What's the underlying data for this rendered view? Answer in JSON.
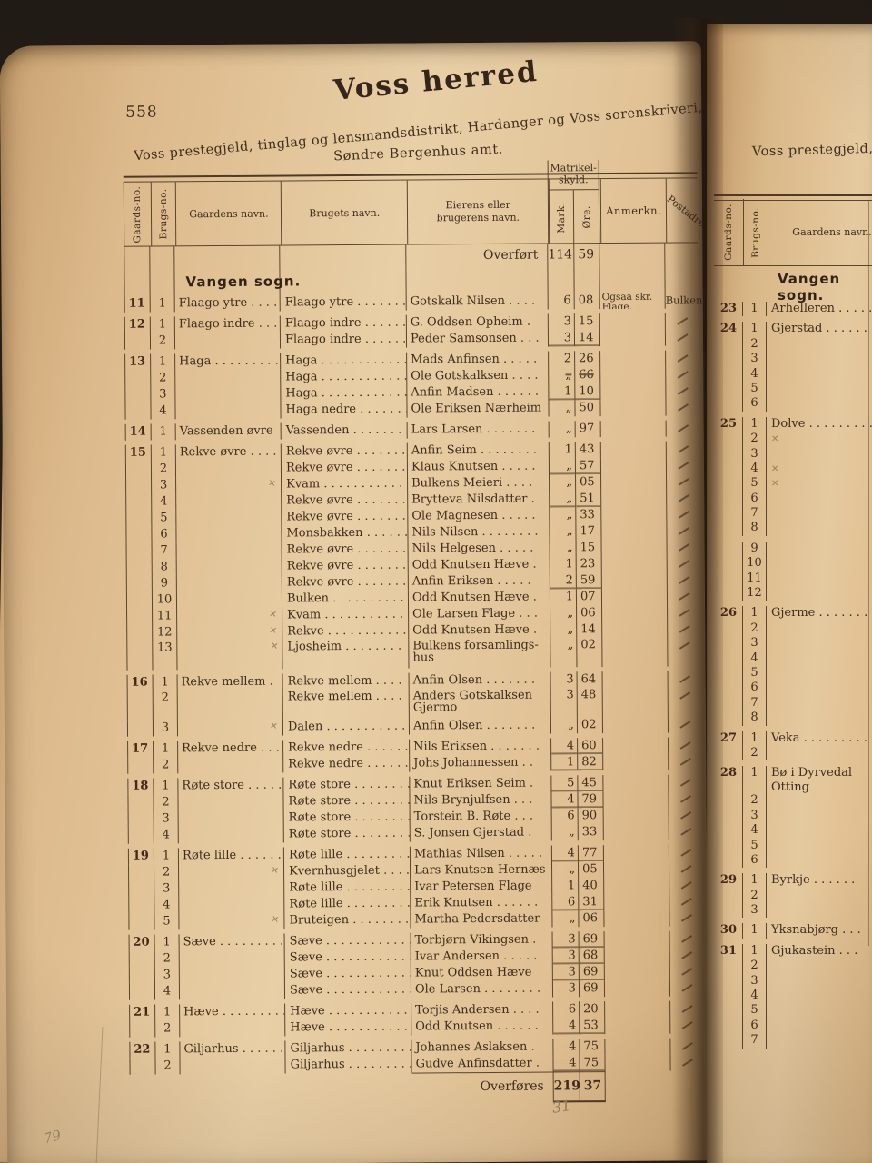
{
  "colors": {
    "backdrop": "#241d16",
    "paper": "#e3c598",
    "ink": "#3f2d1d",
    "bold_ink": "#46281a",
    "pencil": "#97805c",
    "rule_line": "#5a452e"
  },
  "left_page": {
    "page_number": "558",
    "title": "Voss herred",
    "subtitle_line1": "Voss prestegjeld, tinglag og lensmandsdistrikt, Hardanger og Voss sorenskriveri,",
    "subtitle_line2": "Søndre Bergenhus amt.",
    "pencil_note_bottom_left": "79",
    "pencil_note_below_table": "31",
    "table": {
      "headers": {
        "gaards_no": "Gaards-no.",
        "brugs_no": "Brugs-no.",
        "gaardens_navn": "Gaardens navn.",
        "brugets_navn": "Brugets navn.",
        "eier_line1": "Eierens eller",
        "eier_line2": "brugerens navn.",
        "skyld_line1": "Matrikel-",
        "skyld_line2": "skyld.",
        "mark": "Mark.",
        "ore": "Øre.",
        "anmerkn": "Anmerkn.",
        "postadresse": "Postadresse"
      },
      "carried_forward": {
        "label": "Overført",
        "mark": "114",
        "ore": "59"
      },
      "section_heading": "Vangen sogn.",
      "rows": [
        {
          "g": "11",
          "b": "1",
          "gaard": "Flaago ytre . . . .",
          "brug": "Flaago ytre . . . . . . .",
          "owner": "Gotskalk Nilsen . . . .",
          "mark": "6",
          "ore": "08",
          "chk": "v",
          "anm1": "Ogsaa skr.",
          "anm2": "Flage.",
          "post": "Bulken"
        },
        {
          "g": "12",
          "b": "1",
          "gaard": "Flaago indre . . .",
          "brug": "Flaago indre . . . . . .",
          "owner": "G. Oddsen Opheim .",
          "mark": "3",
          "ore": "15",
          "chk": "v",
          "post": "-",
          "gap": 1
        },
        {
          "b": "2",
          "brug": "Flaago indre . . . . . .",
          "owner": "Peder Samsonsen . . .",
          "mark": "3",
          "ore": "14",
          "chk": "v",
          "u": 1,
          "post": "-"
        },
        {
          "g": "13",
          "b": "1",
          "gaard": "Haga . . . . . . . . .",
          "brug": "Haga . . . . . . . . . . . .",
          "owner": "Mads Anfinsen . . . . .",
          "mark": "2",
          "ore": "26",
          "chk": "v",
          "post": "-",
          "gap": 1
        },
        {
          "b": "2",
          "brug": "Haga . . . . . . . . . . . .",
          "owner": "Ole Gotskalksen . . . .",
          "mark": "„",
          "ore": "66",
          "chk": "v",
          "strike": 1,
          "post": "-"
        },
        {
          "b": "3",
          "brug": "Haga . . . . . . . . . . . .",
          "owner": "Anfin Madsen . . . . . .",
          "mark": "1",
          "ore": "10",
          "chk": "v",
          "u": 1,
          "post": "-"
        },
        {
          "b": "4",
          "brug": "Haga nedre . . . . . . .",
          "owner": "Ole Eriksen Nærheim",
          "mark": "„",
          "ore": "50",
          "chk": "v",
          "post": "-"
        },
        {
          "g": "14",
          "b": "1",
          "gaard": "Vassenden øvre",
          "brug": "Vassenden . . . . . . . .",
          "owner": "Lars Larsen . . . . . . .",
          "mark": "„",
          "ore": "97",
          "post": "-",
          "gap": 1
        },
        {
          "g": "15",
          "b": "1",
          "gaard": "Rekve øvre . . . .",
          "brug": "Rekve øvre . . . . . . .",
          "owner": "Anfin Seim . . . . . . . .",
          "mark": "1",
          "ore": "43",
          "chk": "x",
          "post": "-",
          "gap": 1
        },
        {
          "b": "2",
          "brug": "Rekve øvre . . . . . . .",
          "owner": "Klaus Knutsen . . . . .",
          "mark": "„",
          "ore": "57",
          "chk": "v",
          "u": 1,
          "post": "-"
        },
        {
          "b": "3",
          "gm": "x",
          "brug": "Kvam . . . . . . . . . . .",
          "owner": "Bulkens Meieri . . . .",
          "mark": "„",
          "ore": "05",
          "post": "-"
        },
        {
          "b": "4",
          "brug": "Rekve øvre . . . . . . .",
          "owner": "Brytteva Nilsdatter .",
          "mark": "„",
          "ore": "51",
          "chk": "x",
          "u": 1,
          "post": "-"
        },
        {
          "b": "5",
          "brug": "Rekve øvre . . . . . . .",
          "owner": "Ole Magnesen . . . . .",
          "mark": "„",
          "ore": "33",
          "post": "-"
        },
        {
          "b": "6",
          "brug": "Monsbakken . . . . . .",
          "owner": "Nils Nilsen . . . . . . . .",
          "mark": "„",
          "ore": "17",
          "post": "-"
        },
        {
          "b": "7",
          "brug": "Rekve øvre . . . . . . .",
          "owner": "Nils Helgesen . . . . .",
          "mark": "„",
          "ore": "15",
          "post": "-"
        },
        {
          "b": "8",
          "brug": "Rekve øvre . . . . . . .",
          "owner": "Odd Knutsen Hæve .",
          "mark": "1",
          "ore": "23",
          "chk": "v",
          "post": "-"
        },
        {
          "b": "9",
          "brug": "Rekve øvre . . . . . . .",
          "owner": "Anfin Eriksen . . . . .",
          "mark": "2",
          "ore": "59",
          "chk": "v",
          "u": 1,
          "post": "-"
        },
        {
          "b": "10",
          "brug": "Bulken . . . . . . . . . .",
          "owner": "Odd Knutsen Hæve .",
          "mark": "1",
          "ore": "07",
          "chk": "v",
          "post": "-"
        },
        {
          "b": "11",
          "gm": "x",
          "brug": "Kvam . . . . . . . . . . .",
          "owner": "Ole Larsen Flage . . .",
          "mark": "„",
          "ore": "06",
          "post": "-"
        },
        {
          "b": "12",
          "gm": "x",
          "brug": "Rekve . . . . . . . . . . .",
          "owner": "Odd Knutsen Hæve .",
          "mark": "„",
          "ore": "14",
          "post": "-"
        },
        {
          "b": "13",
          "gm": "x",
          "brug": "Ljosheim . . . . . . . .",
          "owner": "Bulkens forsamlings-",
          "owner2": "hus",
          "mark": "„",
          "ore": "02",
          "tall": 1,
          "post": "-"
        },
        {
          "g": "16",
          "b": "1",
          "gaard": "Rekve mellem .",
          "brug": "Rekve mellem . . . .",
          "owner": "Anfin Olsen . . . . . . .",
          "mark": "3",
          "ore": "64",
          "chk": "x",
          "post": "-",
          "gap": 1
        },
        {
          "b": "2",
          "brug": "Rekve mellem . . . .",
          "owner": "Anders Gotskalksen",
          "owner2": "Gjermo",
          "mark": "3",
          "ore": "48",
          "chk": "x",
          "tall": 1,
          "post": "-"
        },
        {
          "b": "3",
          "gm": "x",
          "brug": "Dalen . . . . . . . . . . .",
          "owner": "Anfin Olsen . . . . . . .",
          "mark": "„",
          "ore": "02",
          "post": "-"
        },
        {
          "g": "17",
          "b": "1",
          "gaard": "Rekve nedre . . .",
          "brug": "Rekve nedre . . . . . .",
          "owner": "Nils Eriksen . . . . . . .",
          "mark": "4",
          "ore": "60",
          "chk": "x",
          "u": 1,
          "post": "-",
          "gap": 1
        },
        {
          "b": "2",
          "brug": "Rekve nedre . . . . . .",
          "owner": "Johs Johannessen . .",
          "mark": "1",
          "ore": "82",
          "chk": "v",
          "u": 1,
          "post": "-"
        },
        {
          "g": "18",
          "b": "1",
          "gaard": "Røte store . . . . .",
          "brug": "Røte store . . . . . . . .",
          "owner": "Knut Eriksen Seim .",
          "mark": "5",
          "ore": "45",
          "chk": "x",
          "u": 1,
          "post": "-",
          "gap": 1
        },
        {
          "b": "2",
          "brug": "Røte store . . . . . . . .",
          "owner": "Nils Brynjulfsen . . .",
          "mark": "4",
          "ore": "79",
          "chk": "x",
          "u": 1,
          "post": "-"
        },
        {
          "b": "3",
          "brug": "Røte store . . . . . . . .",
          "owner": "Torstein B. Røte . . .",
          "mark": "6",
          "ore": "90",
          "chk": "x",
          "post": "-"
        },
        {
          "b": "4",
          "brug": "Røte store . . . . . . . .",
          "owner": "S. Jonsen Gjerstad .",
          "mark": "„",
          "ore": "33",
          "chk": "v",
          "post": "-"
        },
        {
          "g": "19",
          "b": "1",
          "gaard": "Røte lille . . . . . .",
          "brug": "Røte lille . . . . . . . . .",
          "owner": "Mathias Nilsen . . . . .",
          "mark": "4",
          "ore": "77",
          "chk": "x",
          "u": 1,
          "post": "-",
          "gap": 1
        },
        {
          "b": "2",
          "gm": "x",
          "brug": "Kvernhusgjelet . . . .",
          "owner": "Lars Knutsen Hernæs",
          "mark": "„",
          "ore": "05",
          "post": "-"
        },
        {
          "b": "3",
          "brug": "Røte lille . . . . . . . . .",
          "owner": "Ivar Petersen Flage",
          "mark": "1",
          "ore": "40",
          "chk": "v",
          "post": "-"
        },
        {
          "b": "4",
          "brug": "Røte lille . . . . . . . . .",
          "owner": "Erik Knutsen . . . . . .",
          "mark": "6",
          "ore": "31",
          "chk": "v",
          "u": 1,
          "post": "-"
        },
        {
          "b": "5",
          "gm": "x",
          "brug": "Bruteigen . . . . . . . .",
          "owner": "Martha Pedersdatter",
          "mark": "„",
          "ore": "06",
          "post": "-"
        },
        {
          "g": "20",
          "b": "1",
          "gaard": "Sæve . . . . . . . . .",
          "brug": "Sæve . . . . . . . . . . . .",
          "owner": "Torbjørn Vikingsen .",
          "mark": "3",
          "ore": "69",
          "chk": "v",
          "u": 1,
          "post": "-",
          "gap": 1
        },
        {
          "b": "2",
          "brug": "Sæve . . . . . . . . . . . .",
          "owner": "Ivar Andersen . . . . .",
          "mark": "3",
          "ore": "68",
          "chk": "v",
          "u": 1,
          "post": "-"
        },
        {
          "b": "3",
          "brug": "Sæve . . . . . . . . . . . .",
          "owner": "Knut Oddsen Hæve",
          "mark": "3",
          "ore": "69",
          "chk": "v",
          "u": 1,
          "post": "-"
        },
        {
          "b": "4",
          "brug": "Sæve . . . . . . . . . . . .",
          "owner": "Ole Larsen . . . . . . . .",
          "mark": "3",
          "ore": "69",
          "chk": "v",
          "post": "-"
        },
        {
          "g": "21",
          "b": "1",
          "gaard": "Hæve . . . . . . . . .",
          "brug": "Hæve . . . . . . . . . . .",
          "owner": "Torjis Andersen . . . .",
          "mark": "6",
          "ore": "20",
          "chk": "v",
          "post": "-",
          "gap": 1
        },
        {
          "b": "2",
          "brug": "Hæve . . . . . . . . . . .",
          "owner": "Odd Knutsen . . . . . .",
          "mark": "4",
          "ore": "53",
          "chk": "v",
          "u": 1,
          "post": "-"
        },
        {
          "g": "22",
          "b": "1",
          "gaard": "Giljarhus . . . . . .",
          "brug": "Giljarhus . . . . . . . . .",
          "owner": "Johannes Aslaksen .",
          "mark": "4",
          "ore": "75",
          "chk": "v",
          "post": "-",
          "gap": 1
        },
        {
          "b": "2",
          "brug": "Giljarhus . . . . . . . . .",
          "owner": "Gudve Anfinsdatter .",
          "mark": "4",
          "ore": "75",
          "chk": "v",
          "u": 1,
          "post": "-"
        }
      ],
      "carried_over": {
        "label": "Overføres",
        "mark": "219",
        "ore": "37"
      }
    }
  },
  "right_page": {
    "header": "Voss prestegjeld,",
    "table": {
      "headers": {
        "gaards_no": "Gaards-no.",
        "brugs_no": "Brugs-no.",
        "gaardens_navn": "Gaardens navn."
      },
      "section_heading": "Vangen sogn.",
      "rows": [
        {
          "g": "23",
          "b": "1",
          "name": "Arhelleren . . . . ."
        },
        {
          "g": "24",
          "b": "1",
          "name": "Gjerstad . . . . . . .",
          "gap": 1
        },
        {
          "b": "2"
        },
        {
          "b": "3"
        },
        {
          "b": "4"
        },
        {
          "b": "5"
        },
        {
          "b": "6"
        },
        {
          "g": "25",
          "b": "1",
          "name": "Dolve . . . . . . . . .",
          "gap": 1
        },
        {
          "b": "2",
          "xm": 1
        },
        {
          "b": "3"
        },
        {
          "b": "4",
          "xm": 1
        },
        {
          "b": "5",
          "xm": 1
        },
        {
          "b": "6"
        },
        {
          "b": "7"
        },
        {
          "b": "8"
        },
        {
          "b": "9",
          "gap": 1
        },
        {
          "b": "10"
        },
        {
          "b": "11"
        },
        {
          "b": "12"
        },
        {
          "g": "26",
          "b": "1",
          "name": "Gjerme . . . . . . . .",
          "gap": 1
        },
        {
          "b": "2"
        },
        {
          "b": "3"
        },
        {
          "b": "4"
        },
        {
          "b": "5"
        },
        {
          "b": "6"
        },
        {
          "b": "7"
        },
        {
          "b": "8"
        },
        {
          "g": "27",
          "b": "1",
          "name": "Veka . . . . . . . . .",
          "gap": 1
        },
        {
          "b": "2"
        },
        {
          "g": "28",
          "b": "1",
          "name": "Bø i Dyrvedal",
          "name2": "Otting",
          "gap": 1,
          "tall": 1
        },
        {
          "b": "2"
        },
        {
          "b": "3"
        },
        {
          "b": "4"
        },
        {
          "b": "5"
        },
        {
          "b": "6"
        },
        {
          "g": "29",
          "b": "1",
          "name": "Byrkje . . . . . .",
          "gap": 1
        },
        {
          "b": "2"
        },
        {
          "b": "3"
        },
        {
          "g": "30",
          "b": "1",
          "name": "Yksnabjørg . . .",
          "gap": 1
        },
        {
          "g": "31",
          "b": "1",
          "name": "Gjukastein . . .",
          "gap": 1
        },
        {
          "b": "2"
        },
        {
          "b": "3"
        },
        {
          "b": "4"
        },
        {
          "b": "5"
        },
        {
          "b": "6"
        },
        {
          "b": "7"
        }
      ]
    }
  }
}
